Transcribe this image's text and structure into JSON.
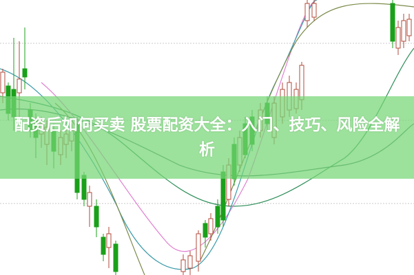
{
  "article": {
    "title": "配资后如何买卖 股票配资大全：入门、技巧、风险全解析"
  },
  "colors": {
    "up_candle": "#b04a3a",
    "down_candle": "#1aa01a",
    "ma_green": "#2f8f5a",
    "ma_pink": "#e080d0",
    "ma_teal": "#3a9aa8",
    "ma_olive": "#8a8a4a",
    "banner": "#76d676"
  }
}
